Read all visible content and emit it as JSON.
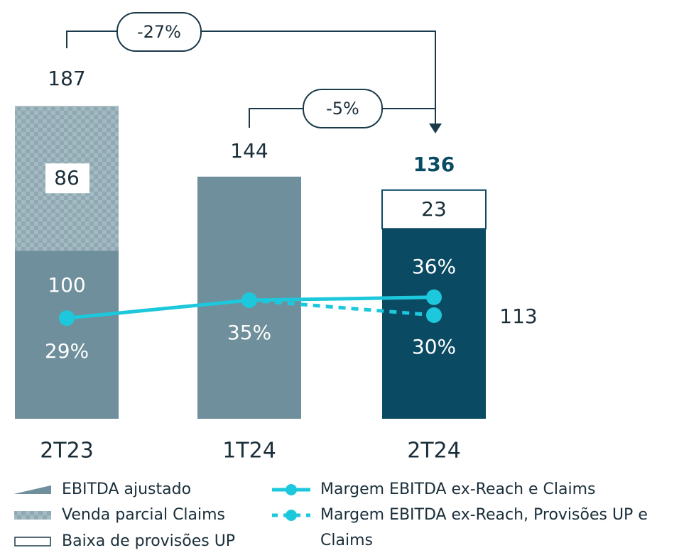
{
  "chart_data": {
    "type": "bar",
    "stacked": true,
    "categories": [
      "2T23",
      "1T24",
      "2T24"
    ],
    "series": [
      {
        "name": "EBITDA ajustado",
        "colors": [
          "#6e8f9b",
          "#6e8f9b",
          "#0b4a63"
        ],
        "values": [
          100,
          144,
          113
        ],
        "value_labels": [
          "100",
          null,
          "113"
        ]
      },
      {
        "name": "Venda parcial Claims",
        "color": "#8fa9b3",
        "pattern": "checker",
        "values": [
          86,
          null,
          null
        ]
      },
      {
        "name": "Baixa de provisões UP",
        "color": "#ffffff",
        "border": "#0b4a63",
        "values": [
          null,
          null,
          23
        ]
      }
    ],
    "totals": [
      187,
      144,
      136
    ],
    "lines": [
      {
        "name": "Margem EBITDA ex-Reach e Claims",
        "color": "#1ec8dc",
        "dashed": false,
        "values": [
          29,
          35,
          36
        ],
        "value_labels": [
          "29%",
          "35%",
          "36%"
        ]
      },
      {
        "name": "Margem EBITDA ex-Reach, Provisões UP e Claims",
        "color": "#1ec8dc",
        "dashed": true,
        "values": [
          null,
          35,
          30
        ],
        "value_labels": [
          null,
          null,
          "30%"
        ]
      }
    ],
    "annotations": [
      "-27%",
      "-5%"
    ]
  }
}
